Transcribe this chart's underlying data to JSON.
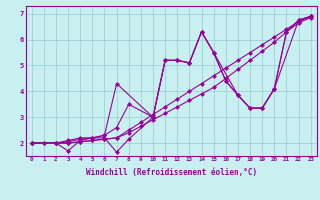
{
  "background_color": "#c8f0f0",
  "plot_bg_color": "#c8f0f0",
  "line_color": "#990099",
  "marker": "D",
  "marker_size": 2.0,
  "line_width": 0.8,
  "xlabel": "Windchill (Refroidissement éolien,°C)",
  "xlabel_fontsize": 5.5,
  "xlim": [
    -0.5,
    23.5
  ],
  "ylim": [
    1.5,
    7.3
  ],
  "xticks": [
    0,
    1,
    2,
    3,
    4,
    5,
    6,
    7,
    8,
    9,
    10,
    11,
    12,
    13,
    14,
    15,
    16,
    17,
    18,
    19,
    20,
    21,
    22,
    23
  ],
  "yticks": [
    2,
    3,
    4,
    5,
    6,
    7
  ],
  "grid_color": "#99cccc",
  "series": [
    {
      "x": [
        0,
        1,
        2,
        3,
        4,
        5,
        6,
        7,
        8,
        9,
        10,
        11,
        12,
        13,
        14,
        15,
        16,
        17,
        18,
        19,
        20,
        21,
        22,
        23
      ],
      "y": [
        2.0,
        2.0,
        2.0,
        2.0,
        2.05,
        2.1,
        2.15,
        2.2,
        2.4,
        2.65,
        2.9,
        3.15,
        3.4,
        3.65,
        3.9,
        4.15,
        4.5,
        4.85,
        5.2,
        5.55,
        5.9,
        6.3,
        6.65,
        6.85
      ]
    },
    {
      "x": [
        0,
        1,
        2,
        3,
        4,
        5,
        6,
        7,
        8,
        9,
        10,
        11,
        12,
        13,
        14,
        15,
        16,
        17,
        18,
        19,
        20,
        21,
        22,
        23
      ],
      "y": [
        2.0,
        2.0,
        2.0,
        2.0,
        2.05,
        2.1,
        2.15,
        2.2,
        2.5,
        2.8,
        3.1,
        3.4,
        3.7,
        4.0,
        4.3,
        4.6,
        4.9,
        5.2,
        5.5,
        5.8,
        6.1,
        6.4,
        6.7,
        6.9
      ]
    },
    {
      "x": [
        0,
        2,
        3,
        4,
        5,
        6,
        7,
        8,
        10,
        11,
        12,
        13,
        14,
        15,
        16,
        17,
        18,
        19,
        20,
        21,
        22,
        23
      ],
      "y": [
        2.0,
        2.0,
        1.7,
        2.1,
        2.2,
        2.2,
        1.65,
        2.15,
        3.0,
        5.2,
        5.2,
        5.1,
        6.3,
        5.5,
        4.4,
        3.85,
        3.35,
        3.35,
        4.1,
        6.3,
        6.75,
        6.9
      ]
    },
    {
      "x": [
        0,
        2,
        3,
        4,
        5,
        6,
        7,
        8,
        10,
        11,
        12,
        13,
        14,
        15,
        16,
        17,
        18,
        19,
        20,
        21,
        22,
        23
      ],
      "y": [
        2.0,
        2.0,
        2.05,
        2.15,
        2.2,
        2.3,
        2.6,
        3.5,
        3.0,
        5.2,
        5.2,
        5.1,
        6.3,
        5.5,
        4.4,
        3.85,
        3.35,
        3.35,
        4.1,
        6.3,
        6.75,
        6.9
      ]
    },
    {
      "x": [
        0,
        2,
        3,
        4,
        5,
        6,
        7,
        10,
        11,
        12,
        13,
        14,
        15,
        17,
        18,
        19,
        20,
        22,
        23
      ],
      "y": [
        2.0,
        2.0,
        2.1,
        2.2,
        2.2,
        2.3,
        4.3,
        3.0,
        5.2,
        5.2,
        5.1,
        6.3,
        5.5,
        3.85,
        3.35,
        3.35,
        4.1,
        6.75,
        6.9
      ]
    }
  ]
}
